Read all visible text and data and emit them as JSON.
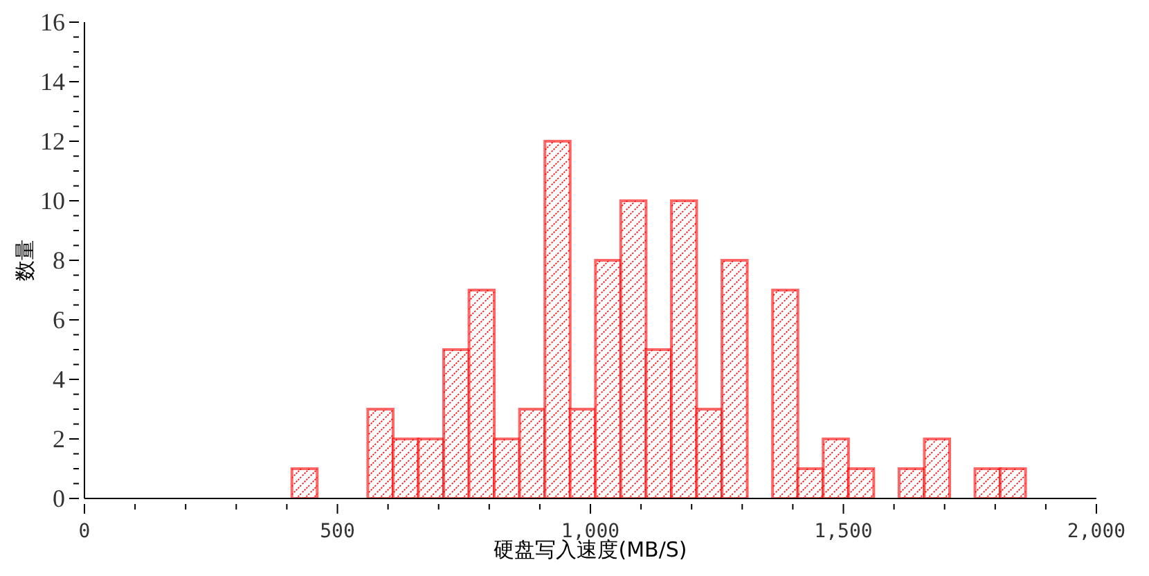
{
  "chart_data": {
    "type": "histogram",
    "xlabel": "硬盘写入速度(MB/S)",
    "ylabel": "数量",
    "bins": [
      410,
      460,
      510,
      560,
      610,
      660,
      710,
      760,
      810,
      860,
      910,
      960,
      1010,
      1060,
      1110,
      1160,
      1210,
      1260,
      1310,
      1360,
      1410,
      1460,
      1510,
      1560,
      1610,
      1660,
      1710,
      1760,
      1810,
      1860
    ],
    "values": [
      1,
      0,
      0,
      3,
      2,
      2,
      5,
      7,
      2,
      3,
      12,
      3,
      8,
      10,
      5,
      10,
      3,
      8,
      0,
      7,
      1,
      2,
      1,
      0,
      1,
      2,
      0,
      1,
      1
    ],
    "color": "#ff0000",
    "xlim": [
      0,
      2000
    ],
    "xticks": [
      0,
      {
        "value": 100,
        "label": null
      },
      {
        "value": 200,
        "label": null
      },
      {
        "value": 300,
        "label": null
      },
      {
        "value": 400,
        "label": null
      },
      500,
      {
        "value": 600,
        "label": null
      },
      {
        "value": 700,
        "label": null
      },
      {
        "value": 800,
        "label": null
      },
      {
        "value": 900,
        "label": null
      },
      {
        "value": 1000,
        "label": "1,000"
      },
      {
        "value": 1100,
        "label": null
      },
      {
        "value": 1200,
        "label": null
      },
      {
        "value": 1300,
        "label": null
      },
      {
        "value": 1400,
        "label": null
      },
      {
        "value": 1500,
        "label": "1,500"
      },
      {
        "value": 1600,
        "label": null
      },
      {
        "value": 1700,
        "label": null
      },
      {
        "value": 1800,
        "label": null
      },
      {
        "value": 1900,
        "label": null
      },
      {
        "value": 2000,
        "label": "2,000"
      }
    ],
    "ylim": [
      0,
      16
    ],
    "yticks": [
      0,
      {
        "value": 0.5,
        "label": null
      },
      {
        "value": 1,
        "label": null
      },
      {
        "value": 1.5,
        "label": null
      },
      2,
      {
        "value": 2.5,
        "label": null
      },
      {
        "value": 3,
        "label": null
      },
      {
        "value": 3.5,
        "label": null
      },
      4,
      {
        "value": 4.5,
        "label": null
      },
      {
        "value": 5,
        "label": null
      },
      {
        "value": 5.5,
        "label": null
      },
      6,
      {
        "value": 6.5,
        "label": null
      },
      {
        "value": 7,
        "label": null
      },
      {
        "value": 7.5,
        "label": null
      },
      8,
      {
        "value": 8.5,
        "label": null
      },
      {
        "value": 9,
        "label": null
      },
      {
        "value": 9.5,
        "label": null
      },
      10,
      {
        "value": 10.5,
        "label": null
      },
      {
        "value": 11,
        "label": null
      },
      {
        "value": 11.5,
        "label": null
      },
      12,
      {
        "value": 12.5,
        "label": null
      },
      {
        "value": 13,
        "label": null
      },
      {
        "value": 13.5,
        "label": null
      },
      14,
      {
        "value": 14.5,
        "label": null
      },
      {
        "value": 15,
        "label": null
      },
      {
        "value": 15.5,
        "label": null
      },
      16
    ],
    "grid": false
  }
}
